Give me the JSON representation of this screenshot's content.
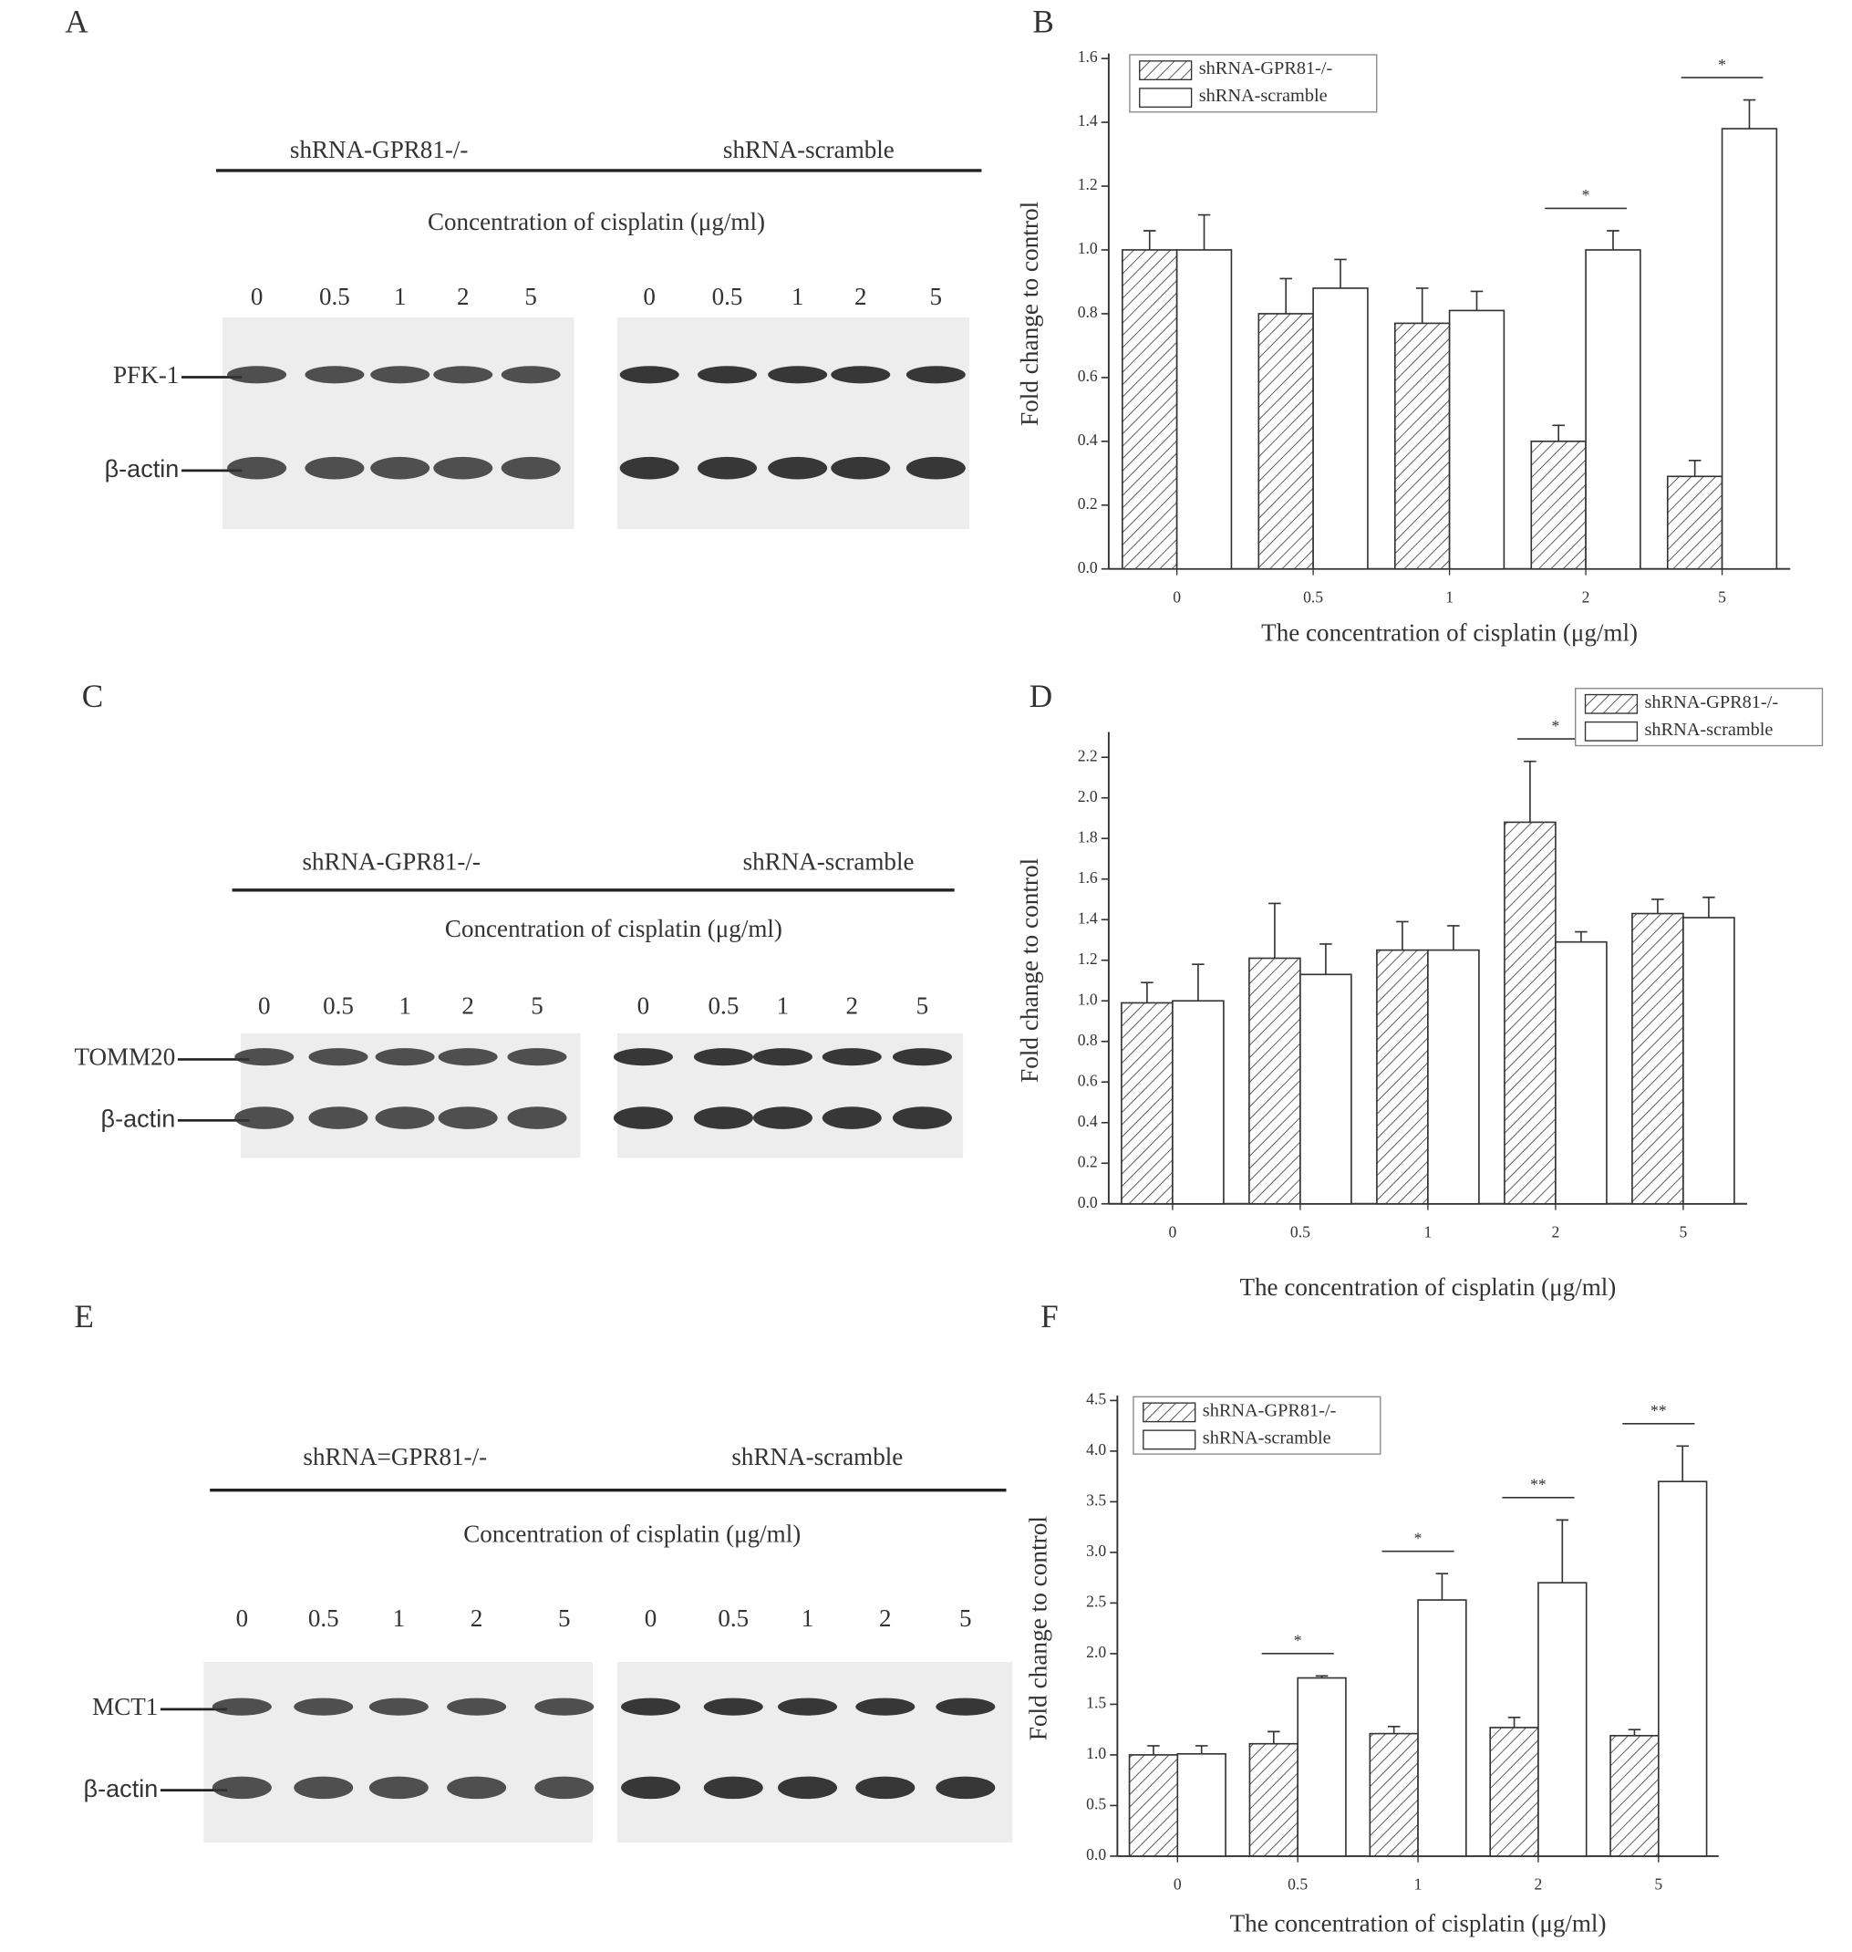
{
  "blots": [
    {
      "panel": "A",
      "groups": [
        "shRNA-GPR81-/-",
        "shRNA-scramble"
      ],
      "subtitle": "Concentration of cisplatin (μg/ml)",
      "lanes": [
        "0",
        "0.5",
        "1",
        "2",
        "5",
        "0",
        "0.5",
        "1",
        "2",
        "5"
      ],
      "proteins": [
        "PFK-1",
        "β-actin"
      ]
    },
    {
      "panel": "C",
      "groups": [
        "shRNA-GPR81-/-",
        "shRNA-scramble"
      ],
      "subtitle": "Concentration of cisplatin (μg/ml)",
      "lanes": [
        "0",
        "0.5",
        "1",
        "2",
        "5",
        "0",
        "0.5",
        "1",
        "2",
        "5"
      ],
      "proteins": [
        "TOMM20",
        "β-actin"
      ]
    },
    {
      "panel": "E",
      "groups": [
        "shRNA=GPR81-/-",
        "shRNA-scramble"
      ],
      "subtitle": "Concentration of cisplatin (μg/ml)",
      "lanes": [
        "0",
        "0.5",
        "1",
        "2",
        "5",
        "0",
        "0.5",
        "1",
        "2",
        "5"
      ],
      "proteins": [
        "MCT1",
        "β-actin"
      ]
    }
  ],
  "chart_data": [
    {
      "type": "bar",
      "panel": "B",
      "x_label": "The concentration of cisplatin (μg/ml)",
      "y_label": "Fold change to control",
      "categories": [
        "0",
        "0.5",
        "1",
        "2",
        "5"
      ],
      "series": [
        {
          "name": "shRNA-GPR81-/-",
          "color": "#ffffff",
          "pattern": "hatch",
          "values": [
            1.0,
            0.8,
            0.77,
            0.4,
            0.29
          ],
          "errors": [
            0.06,
            0.11,
            0.11,
            0.05,
            0.05
          ]
        },
        {
          "name": "shRNA-scramble",
          "color": "#ffffff",
          "values": [
            1.0,
            0.88,
            0.81,
            1.0,
            1.38
          ],
          "errors": [
            0.11,
            0.09,
            0.06,
            0.06,
            0.09
          ]
        }
      ],
      "significance": [
        null,
        null,
        null,
        "*",
        "*"
      ],
      "ylim": [
        0,
        1.6
      ],
      "yticks": [
        {
          "value": 0,
          "label": "0.0"
        },
        0.2,
        0.4,
        0.6,
        0.8,
        {
          "value": 1,
          "label": "1.0"
        },
        1.2,
        1.4,
        1.6
      ],
      "legend": "upper left"
    },
    {
      "type": "bar",
      "panel": "D",
      "x_label": "The concentration of cisplatin (μg/ml)",
      "y_label": "Fold change to control",
      "categories": [
        "0",
        "0.5",
        "1",
        "2",
        "5"
      ],
      "series": [
        {
          "name": "shRNA-GPR81-/-",
          "color": "#ffffff",
          "pattern": "hatch",
          "values": [
            0.99,
            1.21,
            1.25,
            1.88,
            1.43
          ],
          "errors": [
            0.1,
            0.27,
            0.14,
            0.3,
            0.07
          ]
        },
        {
          "name": "shRNA-scramble",
          "color": "#ffffff",
          "values": [
            1.0,
            1.13,
            1.25,
            1.29,
            1.41
          ],
          "errors": [
            0.18,
            0.15,
            0.12,
            0.05,
            0.1
          ]
        }
      ],
      "significance": [
        null,
        null,
        null,
        "*",
        null
      ],
      "ylim": [
        0,
        2.3
      ],
      "yticks": [
        {
          "value": 0,
          "label": "0.0"
        },
        0.2,
        0.4,
        0.6,
        0.8,
        {
          "value": 1,
          "label": "1.0"
        },
        1.2,
        1.4,
        1.6,
        1.8,
        {
          "value": 2,
          "label": "2.0"
        },
        2.2
      ],
      "legend": "upper right"
    },
    {
      "type": "bar",
      "panel": "F",
      "x_label": "The concentration of cisplatin (μg/ml)",
      "y_label": "Fold change to control",
      "categories": [
        "0",
        "0.5",
        "1",
        "2",
        "5"
      ],
      "series": [
        {
          "name": "shRNA-GPR81-/-",
          "color": "#ffffff",
          "pattern": "hatch",
          "values": [
            1.0,
            1.11,
            1.21,
            1.27,
            1.19
          ],
          "errors": [
            0.09,
            0.12,
            0.07,
            0.1,
            0.06
          ]
        },
        {
          "name": "shRNA-scramble",
          "color": "#ffffff",
          "values": [
            1.01,
            1.76,
            2.53,
            2.7,
            3.7
          ],
          "errors": [
            0.08,
            0.02,
            0.26,
            0.62,
            0.35
          ]
        }
      ],
      "significance": [
        null,
        "*",
        "*",
        "**",
        "**"
      ],
      "ylim": [
        0,
        4.5
      ],
      "yticks": [
        {
          "value": 0,
          "label": "0.0"
        },
        0.5,
        {
          "value": 1,
          "label": "1.0"
        },
        1.5,
        {
          "value": 2,
          "label": "2.0"
        },
        2.5,
        {
          "value": 3,
          "label": "3.0"
        },
        3.5,
        {
          "value": 4,
          "label": "4.0"
        },
        4.5
      ],
      "legend": "upper left"
    }
  ]
}
